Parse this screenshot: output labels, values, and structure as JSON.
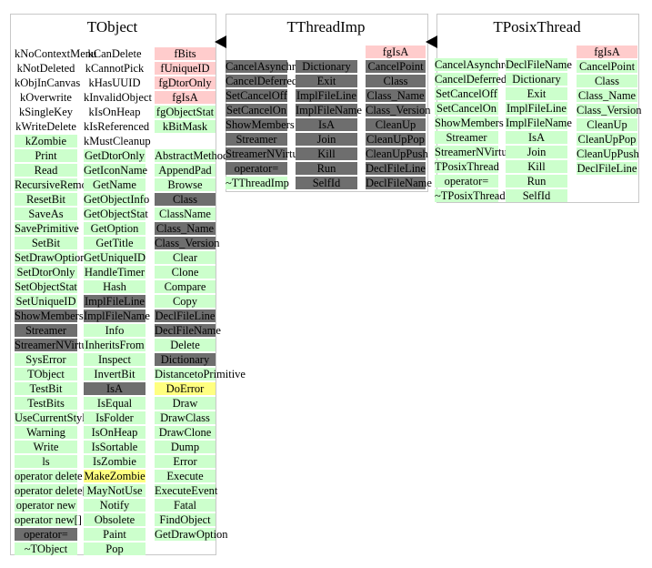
{
  "colors": {
    "green": "#ccffcc",
    "dark": "#6e6e6e",
    "pink": "#ffcccc",
    "yellow": "#ffff80",
    "border": "#c8c8c8"
  },
  "panels": [
    {
      "title": "TObject",
      "columns": [
        [
          {
            "t": "kNoContextMenu",
            "c": "w"
          },
          {
            "t": "kNotDeleted",
            "c": "w"
          },
          {
            "t": "kObjInCanvas",
            "c": "w"
          },
          {
            "t": "kOverwrite",
            "c": "w"
          },
          {
            "t": "kSingleKey",
            "c": "w"
          },
          {
            "t": "kWriteDelete",
            "c": "w"
          },
          {
            "t": "kZombie",
            "c": "g"
          },
          {
            "t": "Print",
            "c": "g"
          },
          {
            "t": "Read",
            "c": "g"
          },
          {
            "t": "RecursiveRemove",
            "c": "g"
          },
          {
            "t": "ResetBit",
            "c": "g"
          },
          {
            "t": "SaveAs",
            "c": "g"
          },
          {
            "t": "SavePrimitive",
            "c": "g"
          },
          {
            "t": "SetBit",
            "c": "g"
          },
          {
            "t": "SetDrawOption",
            "c": "g"
          },
          {
            "t": "SetDtorOnly",
            "c": "g"
          },
          {
            "t": "SetObjectStat",
            "c": "g"
          },
          {
            "t": "SetUniqueID",
            "c": "g"
          },
          {
            "t": "ShowMembers",
            "c": "d"
          },
          {
            "t": "Streamer",
            "c": "d"
          },
          {
            "t": "StreamerNVirtual",
            "c": "d"
          },
          {
            "t": "SysError",
            "c": "g"
          },
          {
            "t": "TObject",
            "c": "g"
          },
          {
            "t": "TestBit",
            "c": "g"
          },
          {
            "t": "TestBits",
            "c": "g"
          },
          {
            "t": "UseCurrentStyle",
            "c": "g"
          },
          {
            "t": "Warning",
            "c": "g"
          },
          {
            "t": "Write",
            "c": "g"
          },
          {
            "t": "ls",
            "c": "g"
          },
          {
            "t": "operator delete",
            "c": "g"
          },
          {
            "t": "operator delete[]",
            "c": "g"
          },
          {
            "t": "operator new",
            "c": "g"
          },
          {
            "t": "operator new[]",
            "c": "g"
          },
          {
            "t": "operator=",
            "c": "d"
          },
          {
            "t": "~TObject",
            "c": "g"
          }
        ],
        [
          {
            "t": "kCanDelete",
            "c": "w"
          },
          {
            "t": "kCannotPick",
            "c": "w"
          },
          {
            "t": "kHasUUID",
            "c": "w"
          },
          {
            "t": "kInvalidObject",
            "c": "w"
          },
          {
            "t": "kIsOnHeap",
            "c": "w"
          },
          {
            "t": "kIsReferenced",
            "c": "w"
          },
          {
            "t": "kMustCleanup",
            "c": "w"
          },
          {
            "t": "GetDtorOnly",
            "c": "g"
          },
          {
            "t": "GetIconName",
            "c": "g"
          },
          {
            "t": "GetName",
            "c": "g"
          },
          {
            "t": "GetObjectInfo",
            "c": "g"
          },
          {
            "t": "GetObjectStat",
            "c": "g"
          },
          {
            "t": "GetOption",
            "c": "g"
          },
          {
            "t": "GetTitle",
            "c": "g"
          },
          {
            "t": "GetUniqueID",
            "c": "g"
          },
          {
            "t": "HandleTimer",
            "c": "g"
          },
          {
            "t": "Hash",
            "c": "g"
          },
          {
            "t": "ImplFileLine",
            "c": "d"
          },
          {
            "t": "ImplFileName",
            "c": "d"
          },
          {
            "t": "Info",
            "c": "g"
          },
          {
            "t": "InheritsFrom",
            "c": "g"
          },
          {
            "t": "Inspect",
            "c": "g"
          },
          {
            "t": "InvertBit",
            "c": "g"
          },
          {
            "t": "IsA",
            "c": "d"
          },
          {
            "t": "IsEqual",
            "c": "g"
          },
          {
            "t": "IsFolder",
            "c": "g"
          },
          {
            "t": "IsOnHeap",
            "c": "g"
          },
          {
            "t": "IsSortable",
            "c": "g"
          },
          {
            "t": "IsZombie",
            "c": "g"
          },
          {
            "t": "MakeZombie",
            "c": "y"
          },
          {
            "t": "MayNotUse",
            "c": "g"
          },
          {
            "t": "Notify",
            "c": "g"
          },
          {
            "t": "Obsolete",
            "c": "g"
          },
          {
            "t": "Paint",
            "c": "g"
          },
          {
            "t": "Pop",
            "c": "g"
          }
        ],
        [
          {
            "t": "fBits",
            "c": "p"
          },
          {
            "t": "fUniqueID",
            "c": "p"
          },
          {
            "t": "fgDtorOnly",
            "c": "p"
          },
          {
            "t": "fgIsA",
            "c": "p"
          },
          {
            "t": "fgObjectStat",
            "c": "g"
          },
          {
            "t": "kBitMask",
            "c": "g"
          },
          {
            "t": "",
            "c": "w"
          },
          {
            "t": "AbstractMethod",
            "c": "g"
          },
          {
            "t": "AppendPad",
            "c": "g"
          },
          {
            "t": "Browse",
            "c": "g"
          },
          {
            "t": "Class",
            "c": "d"
          },
          {
            "t": "ClassName",
            "c": "g"
          },
          {
            "t": "Class_Name",
            "c": "d"
          },
          {
            "t": "Class_Version",
            "c": "d"
          },
          {
            "t": "Clear",
            "c": "g"
          },
          {
            "t": "Clone",
            "c": "g"
          },
          {
            "t": "Compare",
            "c": "g"
          },
          {
            "t": "Copy",
            "c": "g"
          },
          {
            "t": "DeclFileLine",
            "c": "d"
          },
          {
            "t": "DeclFileName",
            "c": "d"
          },
          {
            "t": "Delete",
            "c": "g"
          },
          {
            "t": "Dictionary",
            "c": "d"
          },
          {
            "t": "DistancetoPrimitive",
            "c": "g"
          },
          {
            "t": "DoError",
            "c": "y"
          },
          {
            "t": "Draw",
            "c": "g"
          },
          {
            "t": "DrawClass",
            "c": "g"
          },
          {
            "t": "DrawClone",
            "c": "g"
          },
          {
            "t": "Dump",
            "c": "g"
          },
          {
            "t": "Error",
            "c": "g"
          },
          {
            "t": "Execute",
            "c": "g"
          },
          {
            "t": "ExecuteEvent",
            "c": "g"
          },
          {
            "t": "Fatal",
            "c": "g"
          },
          {
            "t": "FindObject",
            "c": "g"
          },
          {
            "t": "GetDrawOption",
            "c": "g"
          }
        ]
      ]
    },
    {
      "title": "TThreadImp",
      "columns": [
        [
          {
            "t": "CancelAsynchronous",
            "c": "d"
          },
          {
            "t": "CancelDeferred",
            "c": "d"
          },
          {
            "t": "SetCancelOff",
            "c": "d"
          },
          {
            "t": "SetCancelOn",
            "c": "d"
          },
          {
            "t": "ShowMembers",
            "c": "d"
          },
          {
            "t": "Streamer",
            "c": "d"
          },
          {
            "t": "StreamerNVirtual",
            "c": "d"
          },
          {
            "t": "operator=",
            "c": "d"
          },
          {
            "t": "~TThreadImp",
            "c": "g"
          }
        ],
        [
          {
            "t": "Dictionary",
            "c": "d"
          },
          {
            "t": "Exit",
            "c": "d"
          },
          {
            "t": "ImplFileLine",
            "c": "d"
          },
          {
            "t": "ImplFileName",
            "c": "d"
          },
          {
            "t": "IsA",
            "c": "d"
          },
          {
            "t": "Join",
            "c": "d"
          },
          {
            "t": "Kill",
            "c": "d"
          },
          {
            "t": "Run",
            "c": "d"
          },
          {
            "t": "SelfId",
            "c": "d"
          }
        ],
        [
          {
            "t": "fgIsA",
            "c": "p"
          },
          {
            "t": "CancelPoint",
            "c": "d"
          },
          {
            "t": "Class",
            "c": "d"
          },
          {
            "t": "Class_Name",
            "c": "d"
          },
          {
            "t": "Class_Version",
            "c": "d"
          },
          {
            "t": "CleanUp",
            "c": "d"
          },
          {
            "t": "CleanUpPop",
            "c": "d"
          },
          {
            "t": "CleanUpPush",
            "c": "d"
          },
          {
            "t": "DeclFileLine",
            "c": "d"
          },
          {
            "t": "DeclFileName",
            "c": "d"
          }
        ]
      ]
    },
    {
      "title": "TPosixThread",
      "columns": [
        [
          {
            "t": "CancelAsynchronous",
            "c": "g"
          },
          {
            "t": "CancelDeferred",
            "c": "g"
          },
          {
            "t": "SetCancelOff",
            "c": "g"
          },
          {
            "t": "SetCancelOn",
            "c": "g"
          },
          {
            "t": "ShowMembers",
            "c": "g"
          },
          {
            "t": "Streamer",
            "c": "g"
          },
          {
            "t": "StreamerNVirtual",
            "c": "g"
          },
          {
            "t": "TPosixThread",
            "c": "g"
          },
          {
            "t": "operator=",
            "c": "g"
          },
          {
            "t": "~TPosixThread",
            "c": "g"
          }
        ],
        [
          {
            "t": "DeclFileName",
            "c": "g"
          },
          {
            "t": "Dictionary",
            "c": "g"
          },
          {
            "t": "Exit",
            "c": "g"
          },
          {
            "t": "ImplFileLine",
            "c": "g"
          },
          {
            "t": "ImplFileName",
            "c": "g"
          },
          {
            "t": "IsA",
            "c": "g"
          },
          {
            "t": "Join",
            "c": "g"
          },
          {
            "t": "Kill",
            "c": "g"
          },
          {
            "t": "Run",
            "c": "g"
          },
          {
            "t": "SelfId",
            "c": "g"
          }
        ],
        [
          {
            "t": "fgIsA",
            "c": "p"
          },
          {
            "t": "CancelPoint",
            "c": "g"
          },
          {
            "t": "Class",
            "c": "g"
          },
          {
            "t": "Class_Name",
            "c": "g"
          },
          {
            "t": "Class_Version",
            "c": "g"
          },
          {
            "t": "CleanUp",
            "c": "g"
          },
          {
            "t": "CleanUpPop",
            "c": "g"
          },
          {
            "t": "CleanUpPush",
            "c": "g"
          },
          {
            "t": "DeclFileLine",
            "c": "g"
          }
        ]
      ]
    }
  ]
}
